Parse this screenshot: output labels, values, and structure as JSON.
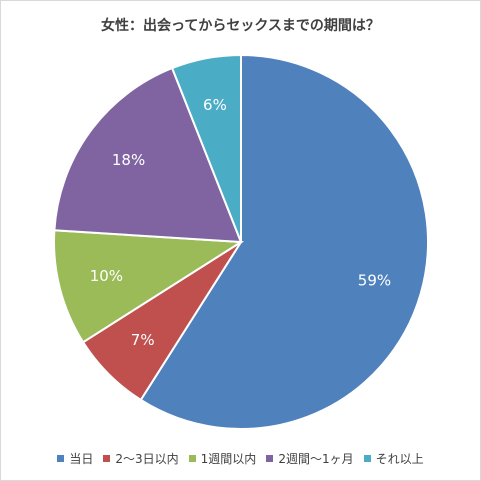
{
  "chart_data": {
    "type": "pie",
    "title": "女性：出会ってからセックスまでの期間は？",
    "categories": [
      "当日",
      "2〜3日以内",
      "1週間以内",
      "2週間〜1ヶ月",
      "それ以上"
    ],
    "values": [
      59,
      7,
      10,
      18,
      6
    ],
    "labels": [
      "59%",
      "7%",
      "10%",
      "18%",
      "6%"
    ],
    "colors": [
      "#4f81bd",
      "#c0504d",
      "#9bbb59",
      "#8064a2",
      "#4bacc6"
    ],
    "legend_position": "bottom"
  }
}
